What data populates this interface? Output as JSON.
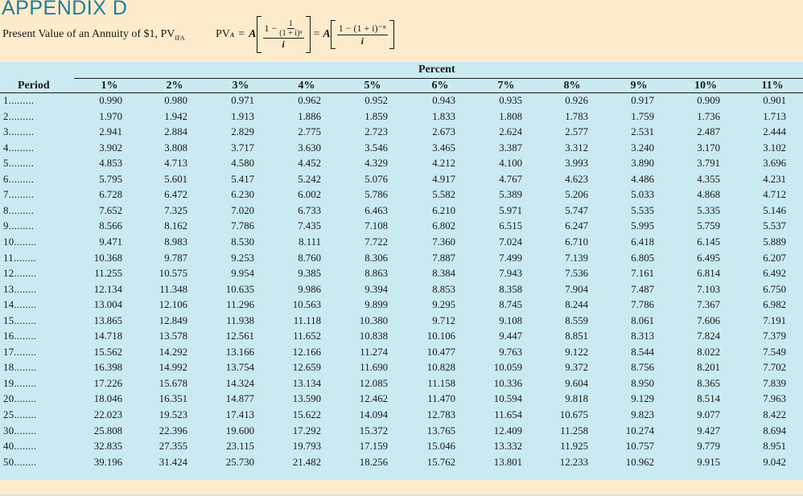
{
  "header": {
    "title": "APPENDIX D",
    "subtitle": "Present Value of an Annuity of $1, PV",
    "subtitle_sub": "IFA",
    "formula": {
      "lhs": "PV",
      "lhs_sub": "A",
      "eq": "=",
      "A": "A",
      "one_minus": "1 −",
      "inner_num": "1",
      "inner_den": "(1 + i)ⁿ",
      "den": "i",
      "alt_num": "1 − (1 + i)⁻ⁿ",
      "alt_den": "i"
    }
  },
  "table": {
    "group_label": "Percent",
    "period_label": "Period",
    "columns": [
      "1%",
      "2%",
      "3%",
      "4%",
      "5%",
      "6%",
      "7%",
      "8%",
      "9%",
      "10%",
      "11%"
    ],
    "rows": [
      {
        "period": "1.........",
        "values": [
          "0.990",
          "0.980",
          "0.971",
          "0.962",
          "0.952",
          "0.943",
          "0.935",
          "0.926",
          "0.917",
          "0.909",
          "0.901"
        ]
      },
      {
        "period": "2.........",
        "values": [
          "1.970",
          "1.942",
          "1.913",
          "1.886",
          "1.859",
          "1.833",
          "1.808",
          "1.783",
          "1.759",
          "1.736",
          "1.713"
        ]
      },
      {
        "period": "3.........",
        "values": [
          "2.941",
          "2.884",
          "2.829",
          "2.775",
          "2.723",
          "2.673",
          "2.624",
          "2.577",
          "2.531",
          "2.487",
          "2.444"
        ]
      },
      {
        "period": "4.........",
        "values": [
          "3.902",
          "3.808",
          "3.717",
          "3.630",
          "3.546",
          "3.465",
          "3.387",
          "3.312",
          "3.240",
          "3.170",
          "3.102"
        ]
      },
      {
        "period": "5.........",
        "values": [
          "4.853",
          "4.713",
          "4.580",
          "4.452",
          "4.329",
          "4.212",
          "4.100",
          "3.993",
          "3.890",
          "3.791",
          "3.696"
        ]
      },
      {
        "period": "6.........",
        "values": [
          "5.795",
          "5.601",
          "5.417",
          "5.242",
          "5.076",
          "4.917",
          "4.767",
          "4.623",
          "4.486",
          "4.355",
          "4.231"
        ]
      },
      {
        "period": "7.........",
        "values": [
          "6.728",
          "6.472",
          "6.230",
          "6.002",
          "5.786",
          "5.582",
          "5.389",
          "5.206",
          "5.033",
          "4.868",
          "4.712"
        ]
      },
      {
        "period": "8.........",
        "values": [
          "7.652",
          "7.325",
          "7.020",
          "6.733",
          "6.463",
          "6.210",
          "5.971",
          "5.747",
          "5.535",
          "5.335",
          "5.146"
        ]
      },
      {
        "period": "9.........",
        "values": [
          "8.566",
          "8.162",
          "7.786",
          "7.435",
          "7.108",
          "6.802",
          "6.515",
          "6.247",
          "5.995",
          "5.759",
          "5.537"
        ]
      },
      {
        "period": "10........",
        "values": [
          "9.471",
          "8.983",
          "8.530",
          "8.111",
          "7.722",
          "7.360",
          "7.024",
          "6.710",
          "6.418",
          "6.145",
          "5.889"
        ]
      },
      {
        "period": "11........",
        "values": [
          "10.368",
          "9.787",
          "9.253",
          "8.760",
          "8.306",
          "7.887",
          "7.499",
          "7.139",
          "6.805",
          "6.495",
          "6.207"
        ]
      },
      {
        "period": "12........",
        "values": [
          "11.255",
          "10.575",
          "9.954",
          "9.385",
          "8.863",
          "8.384",
          "7.943",
          "7.536",
          "7.161",
          "6.814",
          "6.492"
        ]
      },
      {
        "period": "13........",
        "values": [
          "12.134",
          "11.348",
          "10.635",
          "9.986",
          "9.394",
          "8.853",
          "8.358",
          "7.904",
          "7.487",
          "7.103",
          "6.750"
        ]
      },
      {
        "period": "14........",
        "values": [
          "13.004",
          "12.106",
          "11.296",
          "10.563",
          "9.899",
          "9.295",
          "8.745",
          "8.244",
          "7.786",
          "7.367",
          "6.982"
        ]
      },
      {
        "period": "15........",
        "values": [
          "13.865",
          "12.849",
          "11.938",
          "11.118",
          "10.380",
          "9.712",
          "9.108",
          "8.559",
          "8.061",
          "7.606",
          "7.191"
        ]
      },
      {
        "period": "16........",
        "values": [
          "14.718",
          "13.578",
          "12.561",
          "11.652",
          "10.838",
          "10.106",
          "9.447",
          "8.851",
          "8.313",
          "7.824",
          "7.379"
        ]
      },
      {
        "period": "17........",
        "values": [
          "15.562",
          "14.292",
          "13.166",
          "12.166",
          "11.274",
          "10.477",
          "9.763",
          "9.122",
          "8.544",
          "8.022",
          "7.549"
        ]
      },
      {
        "period": "18........",
        "values": [
          "16.398",
          "14.992",
          "13.754",
          "12.659",
          "11.690",
          "10.828",
          "10.059",
          "9.372",
          "8.756",
          "8.201",
          "7.702"
        ]
      },
      {
        "period": "19........",
        "values": [
          "17.226",
          "15.678",
          "14.324",
          "13.134",
          "12.085",
          "11.158",
          "10.336",
          "9.604",
          "8.950",
          "8.365",
          "7.839"
        ]
      },
      {
        "period": "20........",
        "values": [
          "18.046",
          "16.351",
          "14.877",
          "13.590",
          "12.462",
          "11.470",
          "10.594",
          "9.818",
          "9.129",
          "8.514",
          "7.963"
        ]
      },
      {
        "period": "25........",
        "values": [
          "22.023",
          "19.523",
          "17.413",
          "15.622",
          "14.094",
          "12.783",
          "11.654",
          "10.675",
          "9.823",
          "9.077",
          "8.422"
        ]
      },
      {
        "period": "30........",
        "values": [
          "25.808",
          "22.396",
          "19.600",
          "17.292",
          "15.372",
          "13.765",
          "12.409",
          "11.258",
          "10.274",
          "9.427",
          "8.694"
        ]
      },
      {
        "period": "40........",
        "values": [
          "32.835",
          "27.355",
          "23.115",
          "19.793",
          "17.159",
          "15.046",
          "13.332",
          "11.925",
          "10.757",
          "9.779",
          "8.951"
        ]
      },
      {
        "period": "50........",
        "values": [
          "39.196",
          "31.424",
          "25.730",
          "21.482",
          "18.256",
          "15.762",
          "13.801",
          "12.233",
          "10.962",
          "9.915",
          "9.042"
        ]
      }
    ]
  },
  "colors": {
    "page_bg": "#fdebcc",
    "table_bg": "#c9eaf0",
    "title": "#1d7f9c",
    "text": "#1a1a1a"
  }
}
